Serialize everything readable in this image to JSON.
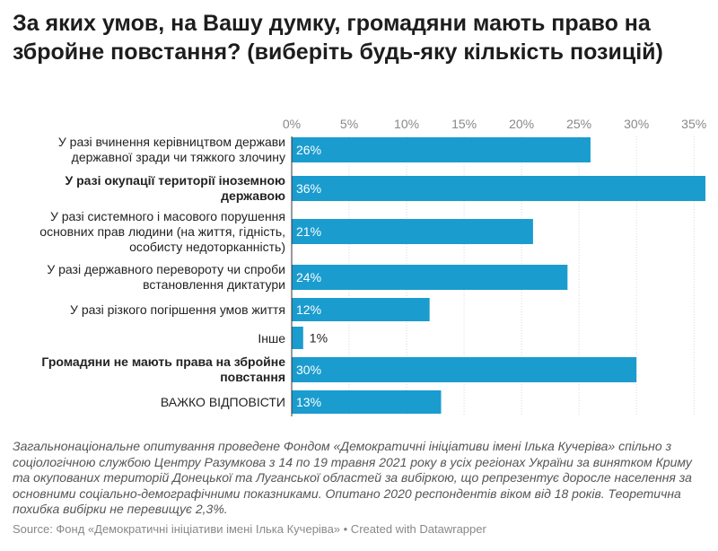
{
  "title": "За яких умов, на Вашу думку, громадяни мають право на збройне повстання? (виберіть будь-яку кількість позицій)",
  "chart_data": {
    "type": "bar",
    "orientation": "horizontal",
    "title": "За яких умов, на Вашу думку, громадяни мають право на збройне повстання? (виберіть будь-яку кількість позицій)",
    "xlabel": "",
    "ylabel": "",
    "xlim": [
      0,
      35
    ],
    "ticks": [
      0,
      5,
      10,
      15,
      20,
      25,
      30,
      35
    ],
    "tick_labels": [
      "0%",
      "5%",
      "10%",
      "15%",
      "20%",
      "25%",
      "30%",
      "35%"
    ],
    "categories": [
      "У разі вчинення керівництвом держави державної зради чи тяжкого злочину",
      "У разі окупації території іноземною державою",
      "У разі системного і масового порушення основних прав людини (на життя, гідність, особисту недоторканність)",
      "У разі державного перевороту чи спроби встановлення диктатури",
      "У разі різкого погіршення умов життя",
      "Інше",
      "Громадяни не мають права на збройне повстання",
      "ВАЖКО ВІДПОВІСТИ"
    ],
    "bold": [
      false,
      true,
      false,
      false,
      false,
      false,
      true,
      false
    ],
    "values": [
      26,
      36,
      21,
      24,
      12,
      1,
      30,
      13
    ],
    "value_labels": [
      "26%",
      "36%",
      "21%",
      "24%",
      "12%",
      "1%",
      "30%",
      "13%"
    ],
    "bar_color": "#1a9ccf"
  },
  "note": "Загальнонаціональне опитування проведене Фондом «Демократичні ініціативи імені Ілька Кучеріва» спільно з соціологічною службою Центру Разумкова з 14 по 19 травня 2021 року в усіх регіонах України за винятком Криму та окупованих територій Донецької та Луганської областей за вибіркою, що репрезентує доросле населення за основними соціально-демографічними показниками. Опитано 2020 респондентів віком від 18 років. Теоретична похибка вибірки не перевищує 2,3%.",
  "source": "Source: Фонд «Демократичні ініціативи імені Ілька Кучеріва» • Created with Datawrapper"
}
